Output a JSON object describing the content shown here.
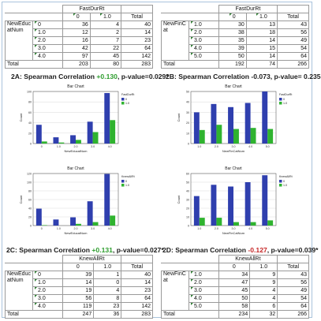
{
  "tables": {
    "t2a": {
      "top_header": "FastDurRt",
      "col_labels": [
        "0",
        "1.0",
        "Total"
      ],
      "row_var": "NewEducatNum",
      "rows": [
        {
          "label": "0",
          "v0": "36",
          "v1": "4",
          "total": "40"
        },
        {
          "label": "1.0",
          "v0": "12",
          "v1": "2",
          "total": "14"
        },
        {
          "label": "2.0",
          "v0": "16",
          "v1": "7",
          "total": "23"
        },
        {
          "label": "3.0",
          "v0": "42",
          "v1": "22",
          "total": "64"
        },
        {
          "label": "4.0",
          "v0": "97",
          "v1": "45",
          "total": "142"
        }
      ],
      "total_row": {
        "label": "Total",
        "v0": "203",
        "v1": "80",
        "total": "283"
      }
    },
    "t2b": {
      "top_header": "FastDurRt",
      "col_labels": [
        "0",
        "1.0",
        "Total"
      ],
      "row_var": "NewFinCat",
      "rows": [
        {
          "label": "1.0",
          "v0": "30",
          "v1": "13",
          "total": "43"
        },
        {
          "label": "2.0",
          "v0": "38",
          "v1": "18",
          "total": "56"
        },
        {
          "label": "3.0",
          "v0": "35",
          "v1": "14",
          "total": "49"
        },
        {
          "label": "4.0",
          "v0": "39",
          "v1": "15",
          "total": "54"
        },
        {
          "label": "5.0",
          "v0": "50",
          "v1": "14",
          "total": "64"
        }
      ],
      "total_row": {
        "label": "Total",
        "v0": "192",
        "v1": "74",
        "total": "266"
      }
    },
    "t2c": {
      "top_header": "KnewAllRt",
      "col_labels": [
        "0",
        "1.0",
        "Total"
      ],
      "row_var": "NewEducatNum",
      "rows": [
        {
          "label": "0",
          "v0": "39",
          "v1": "1",
          "total": "40"
        },
        {
          "label": "1.0",
          "v0": "14",
          "v1": "0",
          "total": "14"
        },
        {
          "label": "2.0",
          "v0": "19",
          "v1": "4",
          "total": "23"
        },
        {
          "label": "3.0",
          "v0": "56",
          "v1": "8",
          "total": "64"
        },
        {
          "label": "4.0",
          "v0": "119",
          "v1": "23",
          "total": "142"
        }
      ],
      "total_row": {
        "label": "Total",
        "v0": "247",
        "v1": "36",
        "total": "283"
      }
    },
    "t2d": {
      "top_header": "KnewAllRt",
      "col_labels": [
        "0",
        "1.0",
        "Total"
      ],
      "row_var": "NewFinCat",
      "rows": [
        {
          "label": "1.0",
          "v0": "34",
          "v1": "9",
          "total": "43"
        },
        {
          "label": "2.0",
          "v0": "47",
          "v1": "9",
          "total": "56"
        },
        {
          "label": "3.0",
          "v0": "45",
          "v1": "4",
          "total": "49"
        },
        {
          "label": "4.0",
          "v0": "50",
          "v1": "4",
          "total": "54"
        },
        {
          "label": "5.0",
          "v0": "58",
          "v1": "6",
          "total": "64"
        }
      ],
      "total_row": {
        "label": "Total",
        "v0": "234",
        "v1": "32",
        "total": "266"
      }
    }
  },
  "captions": {
    "c2a": {
      "prefix": "2A: Spearman Correlation ",
      "value": "+0.130",
      "suffix": ", p-value=0.029*",
      "sign": "pos"
    },
    "c2b": {
      "prefix": "2B: Spearman Correlation -0.073, p-value= 0.235",
      "value": "",
      "suffix": "",
      "sign": "none"
    },
    "c2c": {
      "prefix": "2C: Spearman Correlation ",
      "value": "+0.131",
      "suffix": ", p-value=0.027*",
      "sign": "pos"
    },
    "c2d": {
      "prefix": "2D: Spearman Correlation ",
      "value": "-0.127",
      "suffix": ", p-value=0.039*",
      "sign": "neg"
    }
  },
  "colors": {
    "series0": "#2f3fae",
    "series1": "#2fb32f",
    "grid": "#d0d0d0",
    "axis": "#444444"
  },
  "chart_data": [
    {
      "id": "c2a",
      "type": "bar",
      "title": "Bar Chart",
      "xlabel": "NewEducatNum",
      "ylabel": "Count",
      "legend_title": "FastDurRt",
      "legend_placement": "top-right",
      "categories": [
        "0",
        "1.0",
        "2.0",
        "3.0",
        "4.0"
      ],
      "series": [
        {
          "name": "0",
          "values": [
            36,
            12,
            16,
            42,
            97
          ]
        },
        {
          "name": "1.0",
          "values": [
            4,
            2,
            7,
            22,
            45
          ]
        }
      ],
      "ylim": [
        0,
        100
      ],
      "yticks": [
        0,
        20,
        40,
        60,
        80,
        100
      ]
    },
    {
      "id": "c2b",
      "type": "bar",
      "title": "Bar Chart",
      "xlabel": "NewFinCatNum",
      "ylabel": "Count",
      "legend_title": "FastDurRt",
      "legend_placement": "top-right",
      "categories": [
        "1.0",
        "2.0",
        "3.0",
        "4.0",
        "5.0"
      ],
      "series": [
        {
          "name": "0",
          "values": [
            30,
            38,
            35,
            39,
            50
          ]
        },
        {
          "name": "1.0",
          "values": [
            13,
            18,
            14,
            15,
            14
          ]
        }
      ],
      "ylim": [
        0,
        50
      ],
      "yticks": [
        0,
        10,
        20,
        30,
        40,
        50
      ]
    },
    {
      "id": "c2c",
      "type": "bar",
      "title": "Bar Chart",
      "xlabel": "NewEducatNum",
      "ylabel": "Count",
      "legend_title": "KnewAllRt",
      "legend_placement": "top-right",
      "categories": [
        "0",
        "1.0",
        "2.0",
        "3.0",
        "4.0"
      ],
      "series": [
        {
          "name": "0",
          "values": [
            39,
            14,
            19,
            56,
            119
          ]
        },
        {
          "name": "1.0",
          "values": [
            1,
            0,
            4,
            8,
            23
          ]
        }
      ],
      "ylim": [
        0,
        120
      ],
      "yticks": [
        0,
        20,
        40,
        60,
        80,
        100,
        120
      ]
    },
    {
      "id": "c2d",
      "type": "bar",
      "title": "Bar Chart",
      "xlabel": "NewFinCatNum",
      "ylabel": "Count",
      "legend_title": "KnewAllRt",
      "legend_placement": "top-right",
      "categories": [
        "1.0",
        "2.0",
        "3.0",
        "4.0",
        "5.0"
      ],
      "series": [
        {
          "name": "0",
          "values": [
            34,
            47,
            45,
            50,
            58
          ]
        },
        {
          "name": "1.0",
          "values": [
            9,
            9,
            4,
            4,
            6
          ]
        }
      ],
      "ylim": [
        0,
        60
      ],
      "yticks": [
        0,
        10,
        20,
        30,
        40,
        50,
        60
      ]
    }
  ]
}
